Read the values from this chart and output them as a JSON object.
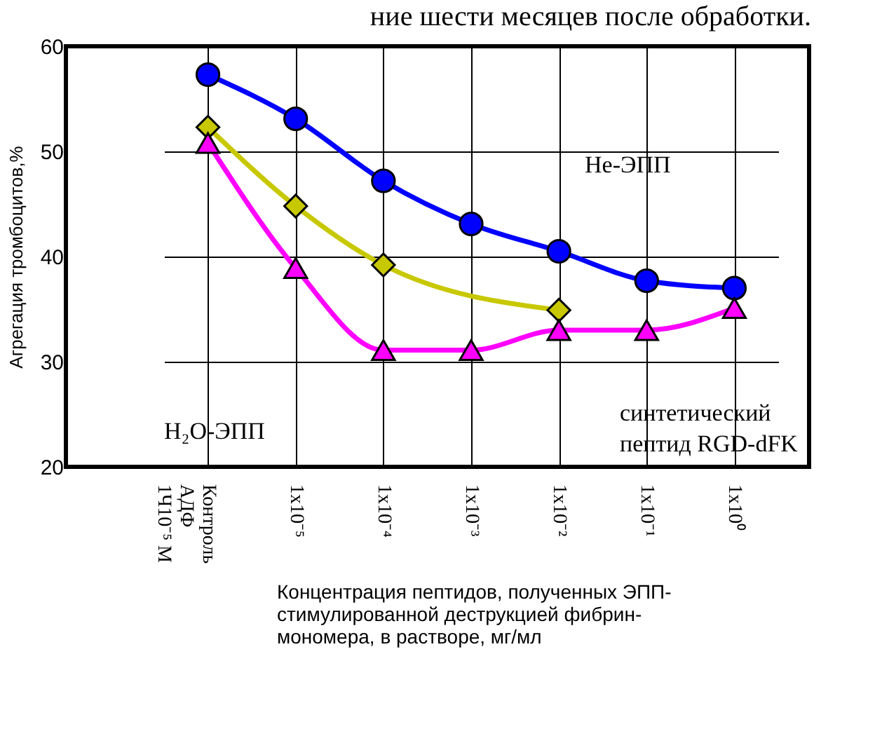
{
  "chart_data": {
    "type": "line",
    "title": "ние шести месяцев после обработки.",
    "categories": [
      "Контроль\nАДФ\n1Ч10⁻⁵ М",
      "1x10⁻⁵",
      "1x10⁻⁴",
      "1x10⁻³",
      "1x10⁻²",
      "1x10⁻¹",
      "1x10⁰"
    ],
    "series": [
      {
        "color": "#0000ff",
        "marker": "circle",
        "values": [
          57.3,
          53.1,
          47.2,
          43.1,
          40.5,
          37.7,
          37.0
        ]
      },
      {
        "color": "#c8c800",
        "marker": "diamond",
        "values": [
          52.3,
          44.8,
          39.2,
          null,
          34.9,
          null,
          null
        ]
      },
      {
        "color": "#ff00ff",
        "marker": "triangle",
        "values": [
          50.8,
          38.9,
          31.1,
          31.1,
          33.0,
          33.0,
          35.1
        ]
      }
    ],
    "xlabel": "Концентрация пептидов, полученных ЭПП-\nстимулированной деструкцией фибрин-\nмономера, в растворе, мг/мл",
    "ylabel": "Агрегация тромбоцитов,%",
    "ylim": [
      20,
      60
    ],
    "yticks": [
      20,
      30,
      40,
      50,
      60
    ],
    "grid": true,
    "annotations": [
      "Не-ЭПП",
      "H₂O-ЭПП",
      "синтетический\nпептид RGD-dFK"
    ]
  }
}
